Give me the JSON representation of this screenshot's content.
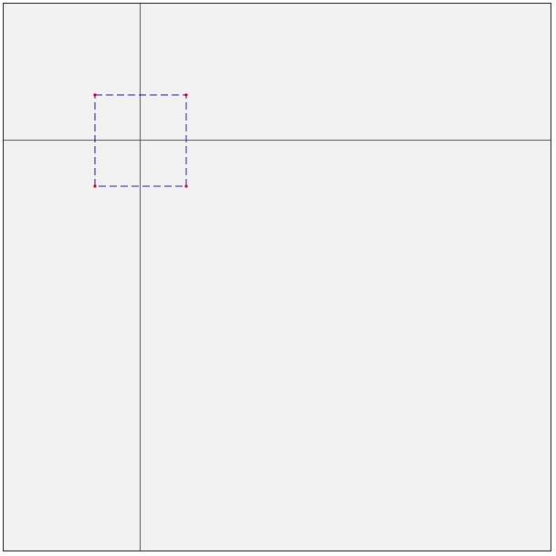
{
  "canvas": {
    "background_color": "#f2f2f2",
    "border_color": "#1a1a1a"
  },
  "crosshair": {
    "color": "#e0201c"
  },
  "selection": {
    "stroke_color": "#1a1aa0",
    "handle_color": "#cc0033",
    "dash_style": "dashed"
  }
}
